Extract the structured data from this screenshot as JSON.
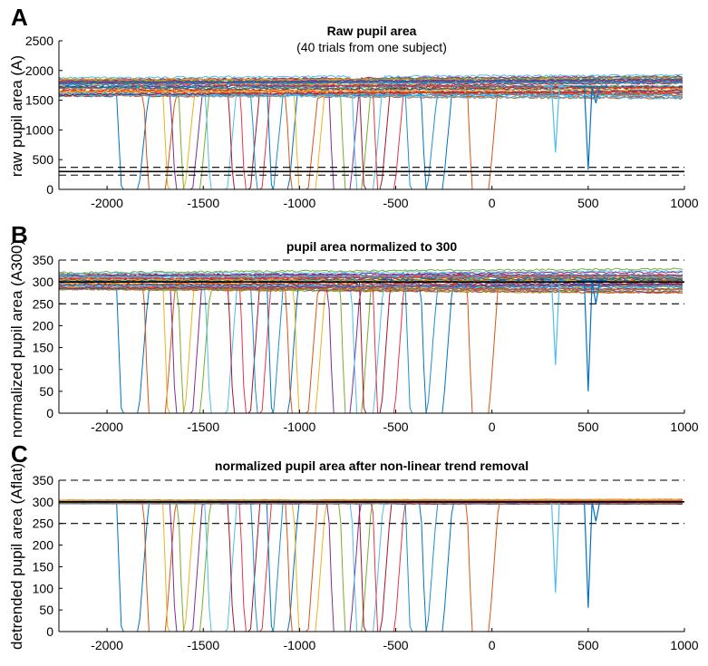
{
  "figure": {
    "panels": [
      {
        "letter": "A",
        "title": "Raw pupil area",
        "subtitle": "(40 trials from one subject)"
      },
      {
        "letter": "B",
        "title": "pupil area normalized to 300",
        "subtitle": ""
      },
      {
        "letter": "C",
        "title": "normalized pupil area after non-linear trend removal",
        "subtitle": ""
      }
    ]
  },
  "chart_data": [
    {
      "type": "line",
      "letter": "A",
      "title": "Raw pupil area",
      "subtitle": "(40 trials from one subject)",
      "xlabel": "",
      "ylabel": "raw pupil area (A)",
      "xlim": [
        -2250,
        1000
      ],
      "ylim": [
        0,
        2500
      ],
      "xticks": [
        -2000,
        -1500,
        -1000,
        -500,
        0,
        500,
        1000
      ],
      "yticks": [
        0,
        500,
        1000,
        1500,
        2000,
        2500
      ],
      "hlines": [
        {
          "y": 300,
          "style": "solid"
        },
        {
          "y": 240,
          "style": "dashed"
        },
        {
          "y": 370,
          "style": "dashed"
        }
      ],
      "trials": 40,
      "baseline_range": [
        1500,
        1950
      ],
      "blink_times": [
        -1880,
        -1740,
        -1640,
        -1600,
        -1560,
        -1420,
        -1300,
        -1240,
        -1180,
        -1100,
        -1000,
        -960,
        -780,
        -720,
        -660,
        -620,
        -550,
        -380,
        -300,
        -60
      ],
      "dips": [
        {
          "x": 330,
          "min": 620
        },
        {
          "x": 500,
          "min": 330
        },
        {
          "x": 540,
          "min": 1450
        }
      ]
    },
    {
      "type": "line",
      "letter": "B",
      "title": "pupil area normalized to 300",
      "xlabel": "",
      "ylabel": "normalized pupil area (A300)",
      "xlim": [
        -2250,
        1000
      ],
      "ylim": [
        0,
        350
      ],
      "xticks": [
        -2000,
        -1500,
        -1000,
        -500,
        0,
        500,
        1000
      ],
      "yticks": [
        0,
        50,
        100,
        150,
        200,
        250,
        300,
        350
      ],
      "hlines": [
        {
          "y": 300,
          "style": "solid"
        },
        {
          "y": 250,
          "style": "dashed"
        },
        {
          "y": 350,
          "style": "dashed"
        }
      ],
      "trials": 40,
      "baseline_range": [
        275,
        330
      ],
      "blink_times": [
        -1880,
        -1740,
        -1640,
        -1600,
        -1560,
        -1420,
        -1300,
        -1240,
        -1180,
        -1100,
        -1000,
        -960,
        -780,
        -720,
        -660,
        -620,
        -550,
        -380,
        -300,
        -60
      ],
      "dips": [
        {
          "x": 330,
          "min": 110
        },
        {
          "x": 500,
          "min": 50
        },
        {
          "x": 540,
          "min": 250
        }
      ]
    },
    {
      "type": "line",
      "letter": "C",
      "title": "normalized pupil area after non-linear trend removal",
      "xlabel": "",
      "ylabel": "detrended pupil area (Aflat)",
      "xlim": [
        -2250,
        1000
      ],
      "ylim": [
        0,
        350
      ],
      "xticks": [
        -2000,
        -1500,
        -1000,
        -500,
        0,
        500,
        1000
      ],
      "yticks": [
        0,
        50,
        100,
        150,
        200,
        250,
        300,
        350
      ],
      "hlines": [
        {
          "y": 300,
          "style": "solid"
        },
        {
          "y": 250,
          "style": "dashed"
        },
        {
          "y": 350,
          "style": "dashed"
        }
      ],
      "trials": 40,
      "baseline_range": [
        294,
        306
      ],
      "blink_times": [
        -1880,
        -1740,
        -1640,
        -1600,
        -1560,
        -1420,
        -1300,
        -1240,
        -1180,
        -1100,
        -1000,
        -960,
        -780,
        -720,
        -660,
        -620,
        -550,
        -380,
        -300,
        -60
      ],
      "dips": [
        {
          "x": 330,
          "min": 90
        },
        {
          "x": 500,
          "min": 55
        },
        {
          "x": 540,
          "min": 255
        }
      ]
    }
  ],
  "colors": {
    "trace_palette": [
      "#0072BD",
      "#D95319",
      "#EDB120",
      "#7E2F8E",
      "#77AC30",
      "#4DBEEE",
      "#A2142F",
      "#E8334A",
      "#1E90C8"
    ],
    "axis": "#000000",
    "reference": "#000000"
  }
}
